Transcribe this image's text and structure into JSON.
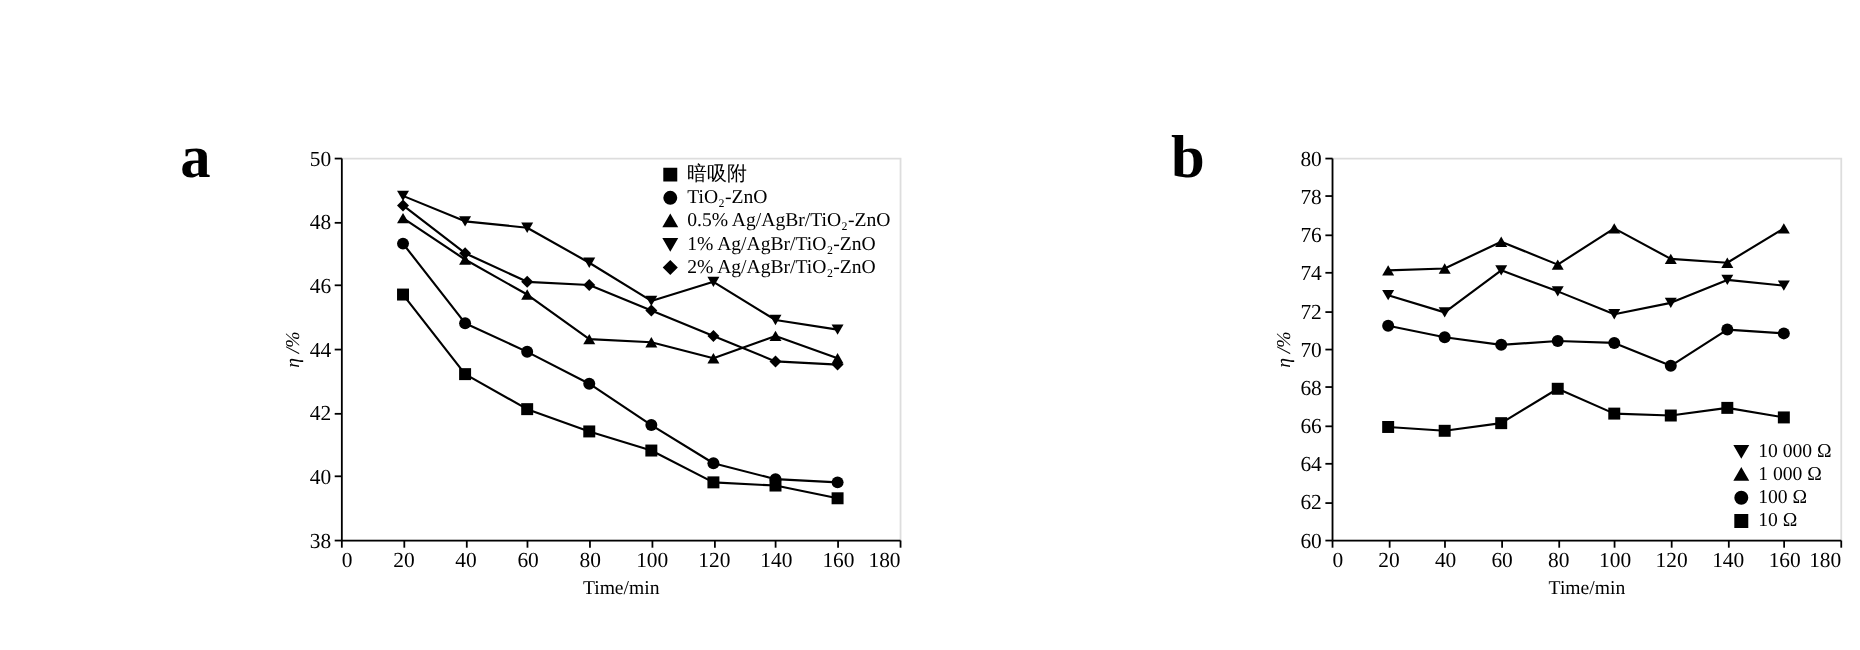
{
  "chart_data": [
    {
      "type": "line",
      "annotations": [
        "a"
      ],
      "xlabel": "Time/min",
      "ylabel": "η /%",
      "x": [
        20,
        40,
        60,
        80,
        100,
        120,
        140,
        160
      ],
      "xlim": [
        0,
        180
      ],
      "xticks": [
        0,
        20,
        40,
        60,
        80,
        100,
        120,
        140,
        160,
        180
      ],
      "ylim": [
        38,
        50
      ],
      "yticks": [
        38,
        40,
        42,
        44,
        46,
        48,
        50
      ],
      "grid": false,
      "legend": "top right",
      "line_style": "solid",
      "series": [
        {
          "name": "暗吸附",
          "color": "#000000",
          "marker": "square",
          "values": [
            45.7,
            43.2,
            42.1,
            41.4,
            40.8,
            39.8,
            39.7,
            39.3
          ]
        },
        {
          "name": "TiO₂-ZnO",
          "color": "#000000",
          "marker": "circle",
          "values": [
            47.3,
            44.8,
            43.9,
            42.9,
            41.6,
            40.4,
            39.9,
            39.8
          ]
        },
        {
          "name": "0.5% Ag/AgBr/TiO₂-ZnO",
          "color": "#000000",
          "marker": "triangle",
          "values": [
            48.1,
            46.8,
            45.7,
            44.3,
            44.2,
            43.7,
            44.4,
            43.7
          ]
        },
        {
          "name": "1% Ag/AgBr/TiO₂-ZnO",
          "color": "#000000",
          "marker": "triangle-down",
          "values": [
            48.8,
            48.0,
            47.8,
            46.7,
            45.5,
            46.1,
            44.9,
            44.6
          ]
        },
        {
          "name": "2% Ag/AgBr/TiO₂-ZnO",
          "color": "#000000",
          "marker": "diamond",
          "values": [
            48.5,
            47.0,
            46.1,
            46.0,
            45.2,
            44.4,
            43.6,
            43.5
          ]
        }
      ]
    },
    {
      "type": "line",
      "annotations": [
        "b"
      ],
      "xlabel": "Time/min",
      "ylabel": "η /%",
      "x": [
        20,
        40,
        60,
        80,
        100,
        120,
        140,
        160
      ],
      "xlim": [
        0,
        180
      ],
      "xticks": [
        0,
        20,
        40,
        60,
        80,
        100,
        120,
        140,
        160,
        180
      ],
      "ylim": [
        60,
        80
      ],
      "yticks": [
        60,
        62,
        64,
        66,
        68,
        70,
        72,
        74,
        76,
        78,
        80
      ],
      "grid": false,
      "legend": "bottom right",
      "line_style": "solid",
      "series": [
        {
          "name": "10 000 Ω",
          "color": "#000000",
          "marker": "triangle-down",
          "values": [
            72.8,
            71.9,
            74.1,
            73.0,
            71.8,
            72.4,
            73.6,
            73.3
          ]
        },
        {
          "name": "1 000 Ω",
          "color": "#000000",
          "marker": "triangle",
          "values": [
            74.1,
            74.2,
            75.6,
            74.4,
            76.3,
            74.7,
            74.5,
            76.3
          ]
        },
        {
          "name": "100 Ω",
          "color": "#000000",
          "marker": "circle",
          "values": [
            71.2,
            70.6,
            70.2,
            70.4,
            70.3,
            69.1,
            71.0,
            70.8
          ]
        },
        {
          "name": "10  Ω",
          "color": "#000000",
          "marker": "square",
          "values": [
            65.9,
            65.7,
            66.1,
            67.9,
            66.6,
            66.5,
            66.9,
            66.4
          ]
        }
      ]
    }
  ]
}
